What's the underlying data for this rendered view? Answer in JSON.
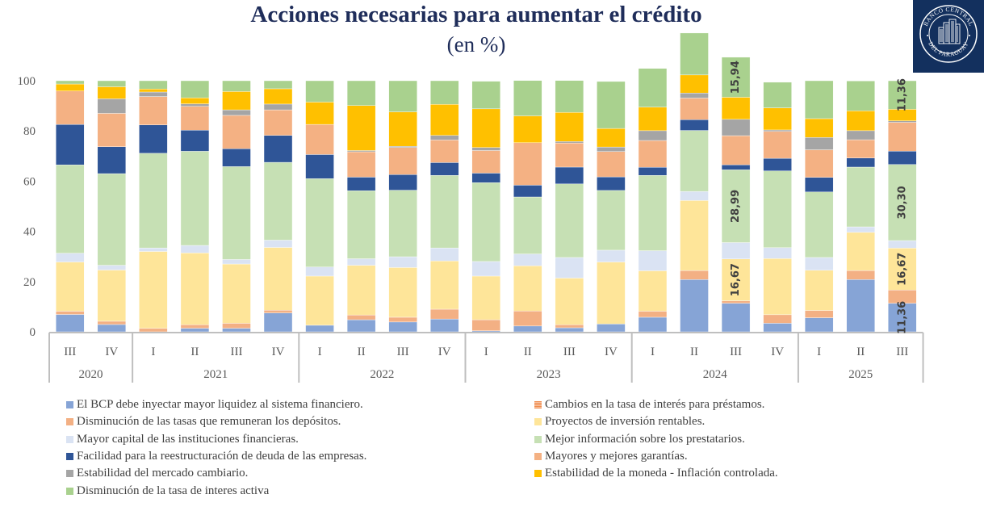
{
  "header": {
    "title": "Acciones necesarias para aumentar el crédito",
    "subtitle": "(en %)",
    "logo_text_top": "BANCO CENTRAL",
    "logo_text_bottom": "DEL PARAGUAY"
  },
  "colors": {
    "bcp_liquidez": "#86a4d6",
    "cambios_tasa": "#f08a4b",
    "disminucion_depositos": "#f3b084",
    "proyectos": "#fee599",
    "mayor_capital": "#dae3f3",
    "mejor_informacion": "#c6e0b4",
    "facilidad_reestructuracion": "#2f5597",
    "mayores_garantias": "#f4b183",
    "estabilidad_cambiario": "#a5a5a5",
    "estabilidad_moneda": "#ffc000",
    "disminucion_tasa_activa": "#a9d18e",
    "axis": "#bfbfbf",
    "tick_text": "#595959",
    "logo_bg": "#13305e"
  },
  "chart_data": {
    "type": "bar",
    "stacked": true,
    "title": "Acciones necesarias para aumentar el crédito",
    "subtitle": "(en %)",
    "xlabel": "",
    "ylabel": "",
    "ylim": [
      0,
      100
    ],
    "yticks": [
      0,
      20,
      40,
      60,
      80,
      100
    ],
    "grid": false,
    "legend_position": "bottom",
    "categories": [
      "III",
      "IV",
      "I",
      "II",
      "III",
      "IV",
      "I",
      "II",
      "III",
      "IV",
      "I",
      "II",
      "III",
      "IV",
      "I",
      "II",
      "III",
      "IV",
      "I",
      "II",
      "III"
    ],
    "year_groups": [
      {
        "label": "2020",
        "count": 2
      },
      {
        "label": "2021",
        "count": 4
      },
      {
        "label": "2022",
        "count": 4
      },
      {
        "label": "2023",
        "count": 4
      },
      {
        "label": "2024",
        "count": 4
      },
      {
        "label": "2025",
        "count": 3
      }
    ],
    "series": [
      {
        "name": "El BCP debe inyectar mayor liquidez al sistema financiero.",
        "color_key": "bcp_liquidez",
        "values": [
          6.9,
          2.9,
          0.0,
          1.4,
          1.4,
          7.5,
          2.6,
          4.8,
          3.9,
          5.1,
          0.4,
          2.3,
          1.6,
          3.1,
          5.8,
          20.8,
          11.36,
          3.4,
          5.6,
          20.8,
          11.36
        ]
      },
      {
        "name": "Cambios en la tasa de interés para préstamos.",
        "color_key": "cambios_tasa",
        "values": [
          0,
          0,
          0,
          0,
          0,
          0,
          0,
          0,
          0,
          0,
          0,
          0,
          0,
          0,
          0,
          0,
          0,
          0,
          0,
          0,
          0
        ]
      },
      {
        "name": "Disminución de las tasas que remuneran los depósitos.",
        "color_key": "disminucion_depositos",
        "values": [
          1.3,
          1.3,
          1.4,
          1.4,
          2.0,
          1.1,
          0.0,
          1.9,
          1.9,
          3.9,
          4.4,
          6.0,
          1.2,
          0.0,
          2.4,
          3.6,
          1.0,
          3.4,
          2.9,
          3.6,
          5.3
        ]
      },
      {
        "name": "Proyectos de inversión rentables.",
        "color_key": "proyectos",
        "values": [
          19.6,
          20.4,
          30.6,
          28.6,
          23.6,
          25.0,
          19.6,
          19.8,
          19.8,
          19.2,
          17.4,
          18.0,
          18.6,
          24.7,
          16.1,
          27.9,
          16.67,
          22.4,
          16.0,
          15.2,
          16.67
        ]
      },
      {
        "name": "Mayor capital de las instituciones financieras.",
        "color_key": "mayor_capital",
        "values": [
          3.5,
          1.9,
          1.4,
          3.0,
          1.8,
          2.9,
          3.6,
          2.6,
          4.3,
          5.2,
          5.8,
          4.7,
          8.2,
          4.7,
          8.0,
          3.6,
          6.5,
          4.3,
          5.1,
          2.2,
          3.0
        ]
      },
      {
        "name": "Mejor información sobre los prestatarios.",
        "color_key": "mejor_informacion",
        "values": [
          35.2,
          36.5,
          37.7,
          37.5,
          37.0,
          31.0,
          35.2,
          27.1,
          26.5,
          28.9,
          31.4,
          22.7,
          29.3,
          23.8,
          30.0,
          24.3,
          28.99,
          30.6,
          26.1,
          23.8,
          30.3
        ]
      },
      {
        "name": "Facilidad para la reestructuración de deuda de las empresas.",
        "color_key": "facilidad_reestructuracion",
        "values": [
          16.1,
          10.7,
          11.3,
          8.4,
          7.1,
          10.7,
          9.6,
          5.4,
          6.2,
          5.1,
          3.8,
          4.7,
          6.7,
          5.4,
          3.2,
          4.3,
          2.0,
          5.0,
          5.8,
          3.6,
          5.3
        ]
      },
      {
        "name": "Mayores y mejores garantías.",
        "color_key": "mayores_garantias",
        "values": [
          13.3,
          13.3,
          11.3,
          9.5,
          13.3,
          10.2,
          12.0,
          10.1,
          10.8,
          9.0,
          9.0,
          16.9,
          9.6,
          10.1,
          10.7,
          8.6,
          11.6,
          10.7,
          11.0,
          7.3,
          11.5
        ]
      },
      {
        "name": "Estabilidad del mercado cambiario.",
        "color_key": "estabilidad_cambiario",
        "values": [
          0.0,
          5.8,
          1.8,
          1.0,
          2.2,
          2.3,
          0.0,
          0.5,
          0.5,
          1.8,
          1.2,
          0.0,
          0.6,
          1.8,
          3.9,
          2.0,
          6.5,
          0.6,
          4.9,
          3.6,
          0.6
        ]
      },
      {
        "name": "Estabilidad de la moneda - Inflación controlada.",
        "color_key": "estabilidad_moneda",
        "values": [
          2.8,
          4.8,
          1.2,
          2.4,
          7.3,
          6.1,
          8.9,
          17.9,
          13.7,
          12.4,
          15.4,
          10.7,
          11.6,
          7.4,
          9.4,
          7.2,
          8.8,
          8.8,
          7.5,
          7.9,
          4.6
        ]
      },
      {
        "name": "Disminución de la tasa de interes activa",
        "color_key": "disminucion_tasa_activa",
        "values": [
          1.3,
          2.4,
          3.3,
          6.8,
          4.3,
          3.2,
          8.5,
          9.9,
          12.4,
          9.4,
          11.0,
          14.1,
          12.7,
          18.7,
          15.4,
          16.7,
          15.94,
          10.2,
          15.1,
          11.9,
          11.36
        ]
      }
    ],
    "data_labels": [
      {
        "category_index": 16,
        "series": "El BCP debe inyectar mayor liquidez al sistema financiero.",
        "text": "",
        "shown": false
      },
      {
        "category_index": 16,
        "series": "Proyectos de inversión rentables.",
        "text": "16,67"
      },
      {
        "category_index": 16,
        "series": "Mejor información sobre los prestatarios.",
        "text": "28,99"
      },
      {
        "category_index": 16,
        "series": "Disminución de la tasa de interes activa",
        "text": "15,94"
      },
      {
        "category_index": 20,
        "series": "El BCP debe inyectar mayor liquidez al sistema financiero.",
        "text": "11,36"
      },
      {
        "category_index": 20,
        "series": "Proyectos de inversión rentables.",
        "text": "16,67"
      },
      {
        "category_index": 20,
        "series": "Mejor información sobre los prestatarios.",
        "text": "30,30"
      },
      {
        "category_index": 20,
        "series": "Disminución de la tasa de interes activa",
        "text": "11,36"
      }
    ]
  },
  "legend": {
    "left": [
      {
        "label": "El BCP debe inyectar mayor liquidez al sistema financiero.",
        "color_key": "bcp_liquidez"
      },
      {
        "label": "Disminución de las tasas que remuneran los depósitos.",
        "color_key": "disminucion_depositos"
      },
      {
        "label": "Mayor capital de las instituciones financieras.",
        "color_key": "mayor_capital"
      },
      {
        "label": "Facilidad para la reestructuración de deuda de las empresas.",
        "color_key": "facilidad_reestructuracion"
      },
      {
        "label": "Estabilidad del mercado cambiario.",
        "color_key": "estabilidad_cambiario"
      },
      {
        "label": "Disminución de la tasa de interes activa",
        "color_key": "disminucion_tasa_activa"
      }
    ],
    "right": [
      {
        "label": "Cambios en la tasa de interés para préstamos.",
        "color_key": "cambios_tasa"
      },
      {
        "label": "Proyectos de inversión rentables.",
        "color_key": "proyectos"
      },
      {
        "label": "Mejor información sobre los prestatarios.",
        "color_key": "mejor_informacion"
      },
      {
        "label": "Mayores y mejores garantías.",
        "color_key": "mayores_garantias"
      },
      {
        "label": "Estabilidad de la moneda - Inflación controlada.",
        "color_key": "estabilidad_moneda"
      }
    ]
  }
}
